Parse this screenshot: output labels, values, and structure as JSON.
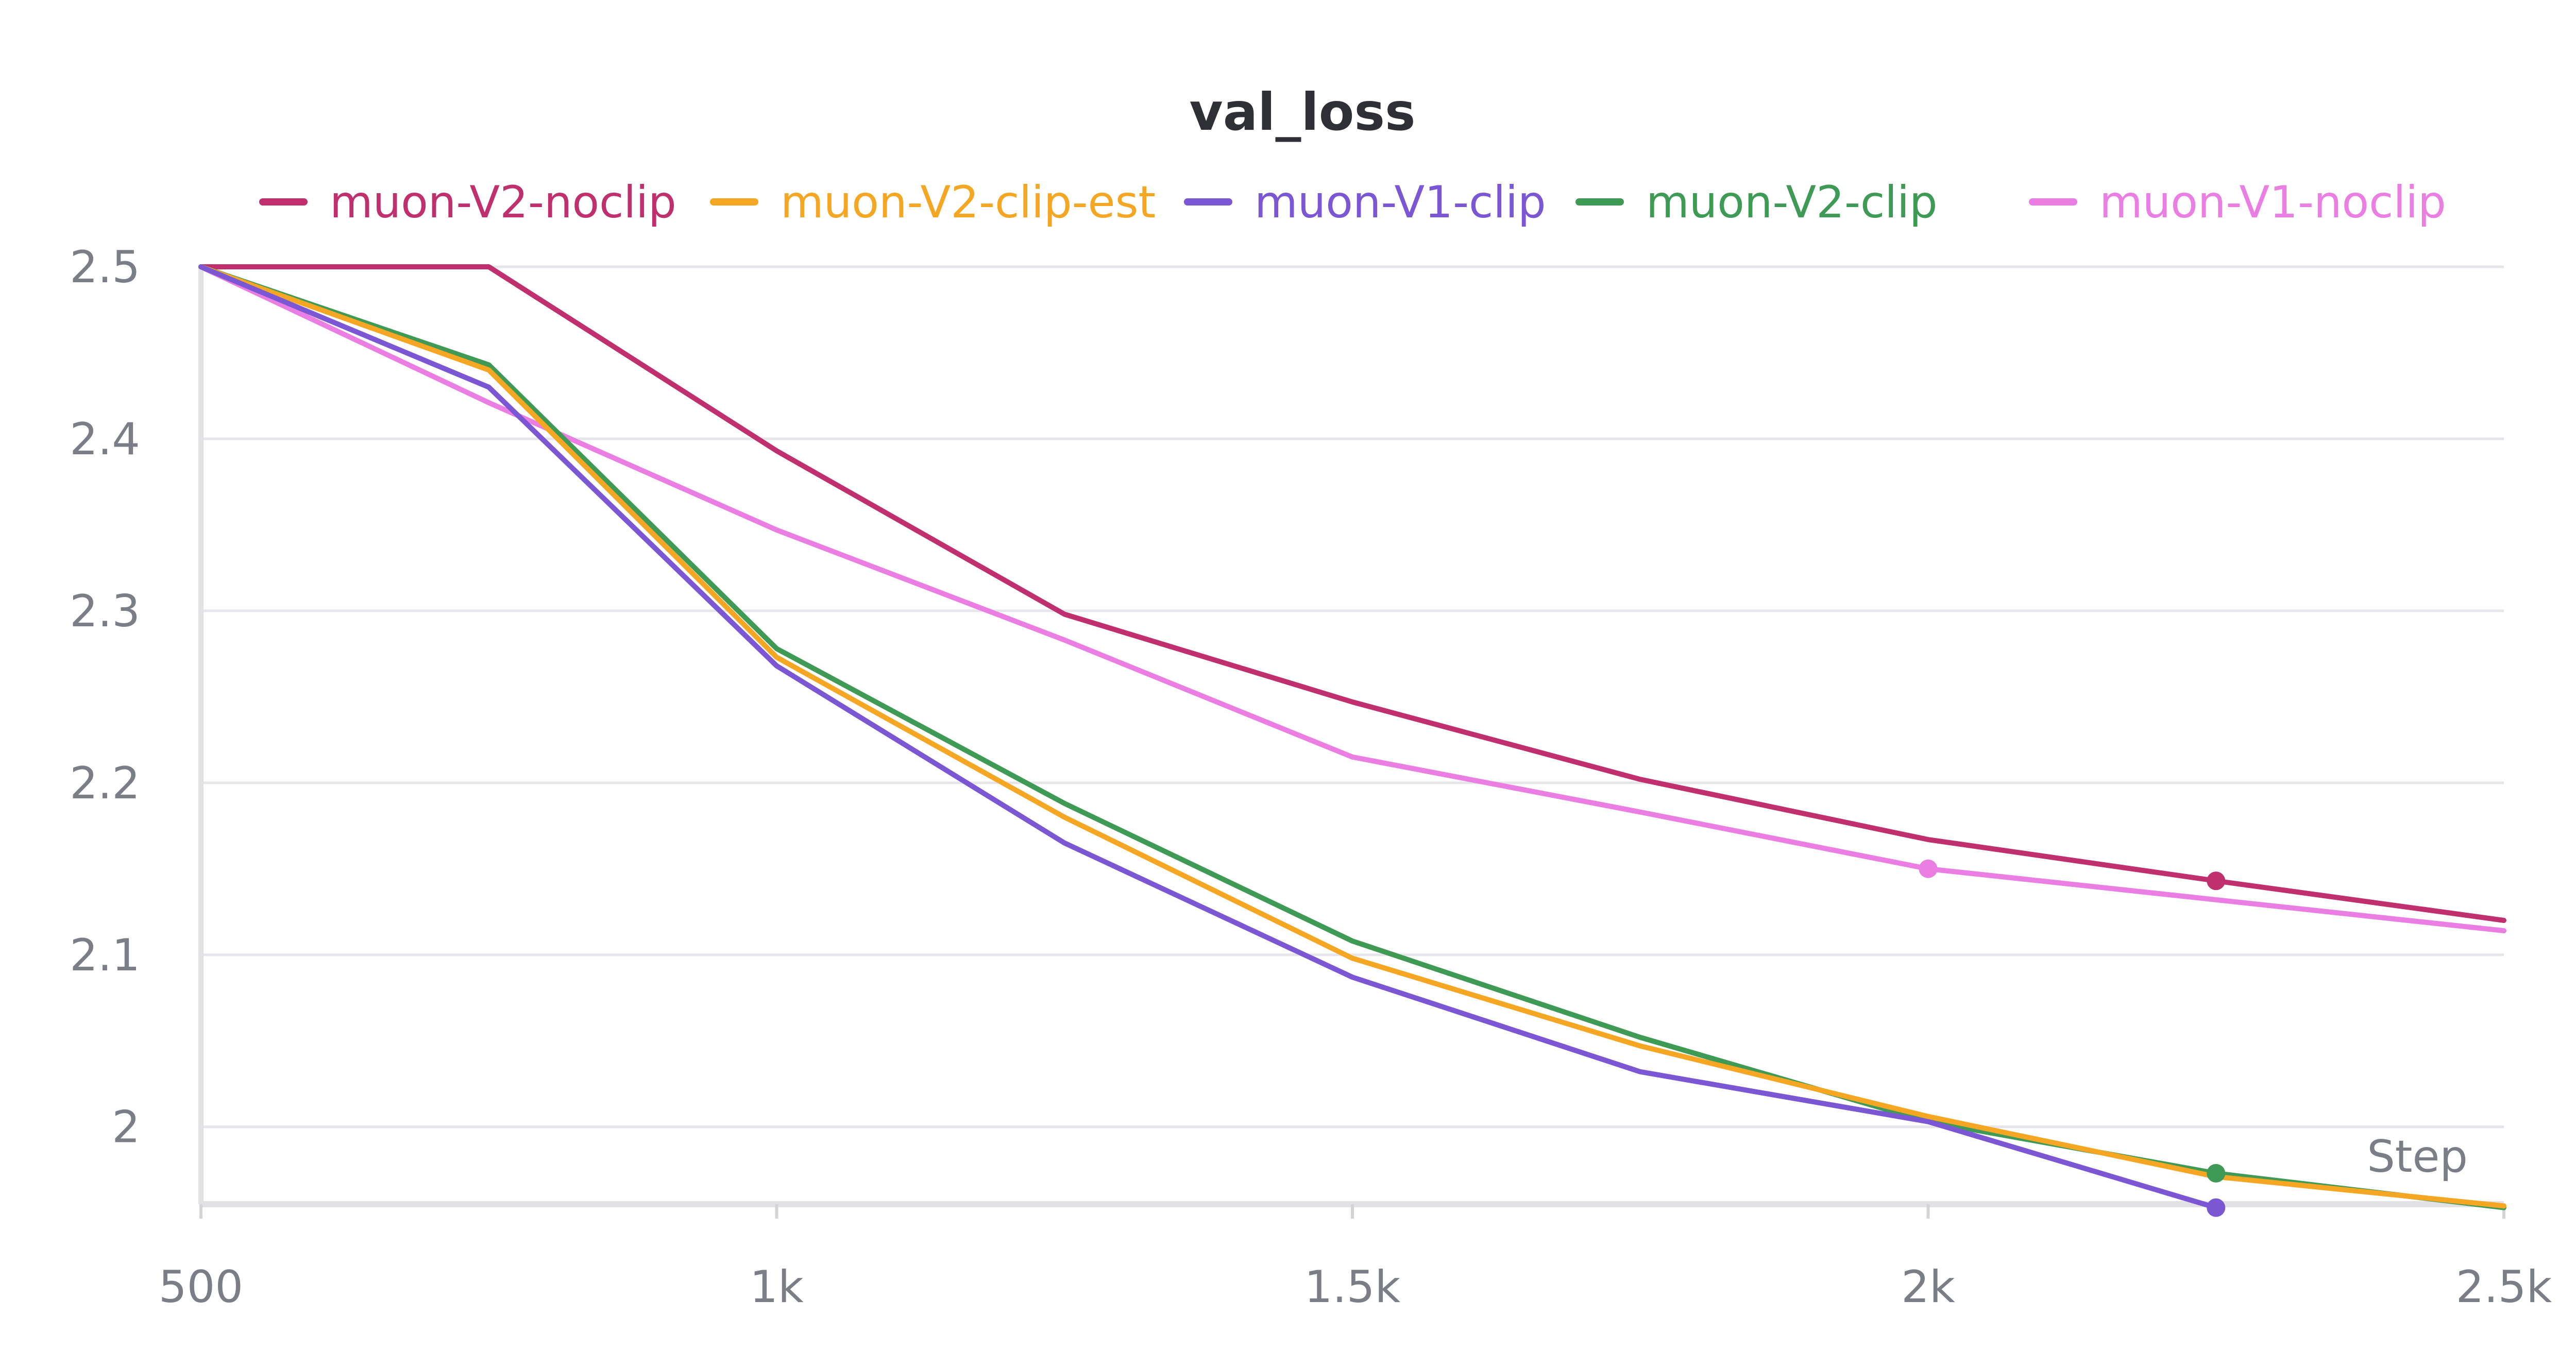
{
  "chart_data": {
    "type": "line",
    "title": "val_loss",
    "xlabel": "Step",
    "ylabel": "",
    "xlim": [
      500,
      2500
    ],
    "ylim": [
      1.955,
      2.5
    ],
    "x_ticks": [
      {
        "value": 500,
        "label": "500"
      },
      {
        "value": 1000,
        "label": "1k"
      },
      {
        "value": 1500,
        "label": "1.5k"
      },
      {
        "value": 2000,
        "label": "2k"
      },
      {
        "value": 2500,
        "label": "2.5k"
      }
    ],
    "y_ticks": [
      {
        "value": 2.0,
        "label": "2"
      },
      {
        "value": 2.1,
        "label": "2.1"
      },
      {
        "value": 2.2,
        "label": "2.2"
      },
      {
        "value": 2.3,
        "label": "2.3"
      },
      {
        "value": 2.4,
        "label": "2.4"
      },
      {
        "value": 2.5,
        "label": "2.5"
      }
    ],
    "grid": true,
    "legend_position": "top",
    "x": [
      500,
      750,
      1000,
      1250,
      1500,
      1750,
      2000,
      2250,
      2500
    ],
    "series": [
      {
        "name": "muon-V2-noclip",
        "color": "#c0306f",
        "values": [
          2.5,
          2.5,
          2.393,
          2.298,
          2.247,
          2.202,
          2.167,
          2.143,
          2.12
        ],
        "marker_index": 7
      },
      {
        "name": "muon-V2-clip-est",
        "color": "#f5a623",
        "values": [
          2.5,
          2.44,
          2.273,
          2.18,
          2.098,
          2.047,
          2.006,
          1.971,
          1.954
        ],
        "marker_index": null
      },
      {
        "name": "muon-V1-clip",
        "color": "#7b57d4",
        "values": [
          2.5,
          2.43,
          2.268,
          2.165,
          2.087,
          2.032,
          2.003,
          1.953,
          null
        ],
        "marker_index": 7
      },
      {
        "name": "muon-V2-clip",
        "color": "#3f9a55",
        "values": [
          2.5,
          2.443,
          2.278,
          2.188,
          2.108,
          2.052,
          2.003,
          1.973,
          1.953
        ],
        "marker_index": 7
      },
      {
        "name": "muon-V1-noclip",
        "color": "#ea7ee3",
        "values": [
          2.5,
          2.421,
          2.347,
          2.283,
          2.215,
          2.183,
          2.15,
          2.132,
          2.114
        ],
        "marker_index": 6
      }
    ]
  }
}
